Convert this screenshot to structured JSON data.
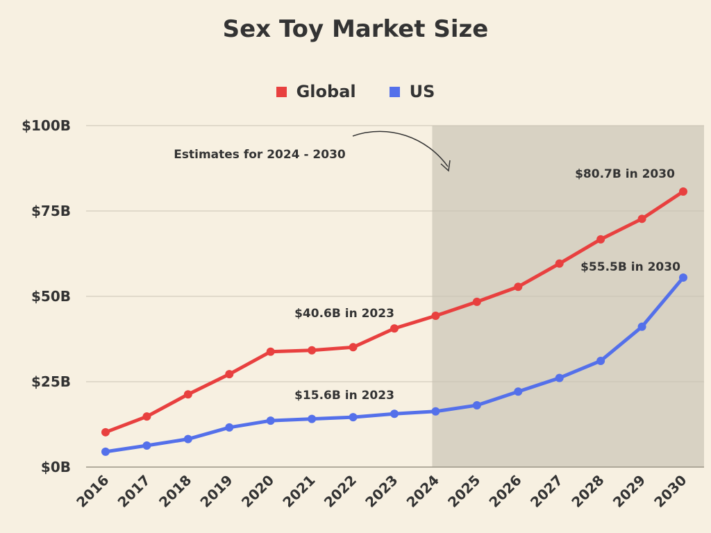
{
  "chart_data": {
    "type": "line",
    "title": "Sex Toy Market Size",
    "x": [
      "2016",
      "2017",
      "2018",
      "2019",
      "2020",
      "2021",
      "2022",
      "2023",
      "2024",
      "2025",
      "2026",
      "2027",
      "2028",
      "2029",
      "2030"
    ],
    "series": [
      {
        "name": "Global",
        "color": "#e8403f",
        "values": [
          10.2,
          14.8,
          21.3,
          27.2,
          33.8,
          34.2,
          35.1,
          40.6,
          44.3,
          48.4,
          52.8,
          59.6,
          66.7,
          72.7,
          80.7
        ]
      },
      {
        "name": "US",
        "color": "#5470ea",
        "values": [
          4.5,
          6.3,
          8.2,
          11.6,
          13.6,
          14.1,
          14.6,
          15.6,
          16.3,
          18.1,
          22.1,
          26.1,
          31.1,
          41.1,
          55.5
        ]
      }
    ],
    "ylim": [
      0,
      100
    ],
    "yticks": [
      0,
      25,
      50,
      75,
      100
    ],
    "ytick_labels": [
      "$0B",
      "$25B",
      "$50B",
      "$75B",
      "$100B"
    ],
    "grid": true,
    "legend_position": "top-center",
    "shaded_region": {
      "from": "2024",
      "to": "2030",
      "color": "#d8d2c3"
    },
    "annotations": [
      {
        "text": "Estimates for 2024 - 2030"
      },
      {
        "text": "$80.7B in 2030"
      },
      {
        "text": "$55.5B in 2030"
      },
      {
        "text": "$40.6B in 2023"
      },
      {
        "text": "$15.6B in 2023"
      }
    ]
  }
}
